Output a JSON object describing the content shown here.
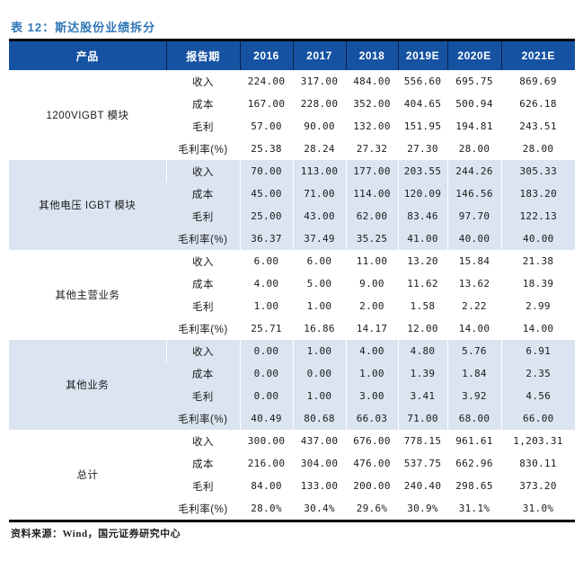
{
  "page": {
    "title": "表 12：斯达股份业绩拆分",
    "source": "资料来源：Wind，国元证券研究中心"
  },
  "colors": {
    "title_blue": "#2e75b6",
    "header_bg": "#1552a2",
    "band_bg": "#dbe5f1",
    "border_black": "#000000"
  },
  "table": {
    "columns": [
      "产品",
      "报告期",
      "2016",
      "2017",
      "2018",
      "2019E",
      "2020E",
      "2021E"
    ],
    "metric_labels": [
      "收入",
      "成本",
      "毛利",
      "毛利率(%)"
    ],
    "groups": [
      {
        "product": "1200VIGBT 模块",
        "shaded": false,
        "rows": [
          [
            "224.00",
            "317.00",
            "484.00",
            "556.60",
            "695.75",
            "869.69"
          ],
          [
            "167.00",
            "228.00",
            "352.00",
            "404.65",
            "500.94",
            "626.18"
          ],
          [
            "57.00",
            "90.00",
            "132.00",
            "151.95",
            "194.81",
            "243.51"
          ],
          [
            "25.38",
            "28.24",
            "27.32",
            "27.30",
            "28.00",
            "28.00"
          ]
        ]
      },
      {
        "product": "其他电压 IGBT 模块",
        "shaded": true,
        "rows": [
          [
            "70.00",
            "113.00",
            "177.00",
            "203.55",
            "244.26",
            "305.33"
          ],
          [
            "45.00",
            "71.00",
            "114.00",
            "120.09",
            "146.56",
            "183.20"
          ],
          [
            "25.00",
            "43.00",
            "62.00",
            "83.46",
            "97.70",
            "122.13"
          ],
          [
            "36.37",
            "37.49",
            "35.25",
            "41.00",
            "40.00",
            "40.00"
          ]
        ]
      },
      {
        "product": "其他主营业务",
        "shaded": false,
        "rows": [
          [
            "6.00",
            "6.00",
            "11.00",
            "13.20",
            "15.84",
            "21.38"
          ],
          [
            "4.00",
            "5.00",
            "9.00",
            "11.62",
            "13.62",
            "18.39"
          ],
          [
            "1.00",
            "1.00",
            "2.00",
            "1.58",
            "2.22",
            "2.99"
          ],
          [
            "25.71",
            "16.86",
            "14.17",
            "12.00",
            "14.00",
            "14.00"
          ]
        ]
      },
      {
        "product": "其他业务",
        "shaded": true,
        "rows": [
          [
            "0.00",
            "1.00",
            "4.00",
            "4.80",
            "5.76",
            "6.91"
          ],
          [
            "0.00",
            "0.00",
            "1.00",
            "1.39",
            "1.84",
            "2.35"
          ],
          [
            "0.00",
            "1.00",
            "3.00",
            "3.41",
            "3.92",
            "4.56"
          ],
          [
            "40.49",
            "80.68",
            "66.03",
            "71.00",
            "68.00",
            "66.00"
          ]
        ]
      },
      {
        "product": "总计",
        "shaded": false,
        "rows": [
          [
            "300.00",
            "437.00",
            "676.00",
            "778.15",
            "961.61",
            "1,203.31"
          ],
          [
            "216.00",
            "304.00",
            "476.00",
            "537.75",
            "662.96",
            "830.11"
          ],
          [
            "84.00",
            "133.00",
            "200.00",
            "240.40",
            "298.65",
            "373.20"
          ],
          [
            "28.0%",
            "30.4%",
            "29.6%",
            "30.9%",
            "31.1%",
            "31.0%"
          ]
        ]
      }
    ]
  }
}
